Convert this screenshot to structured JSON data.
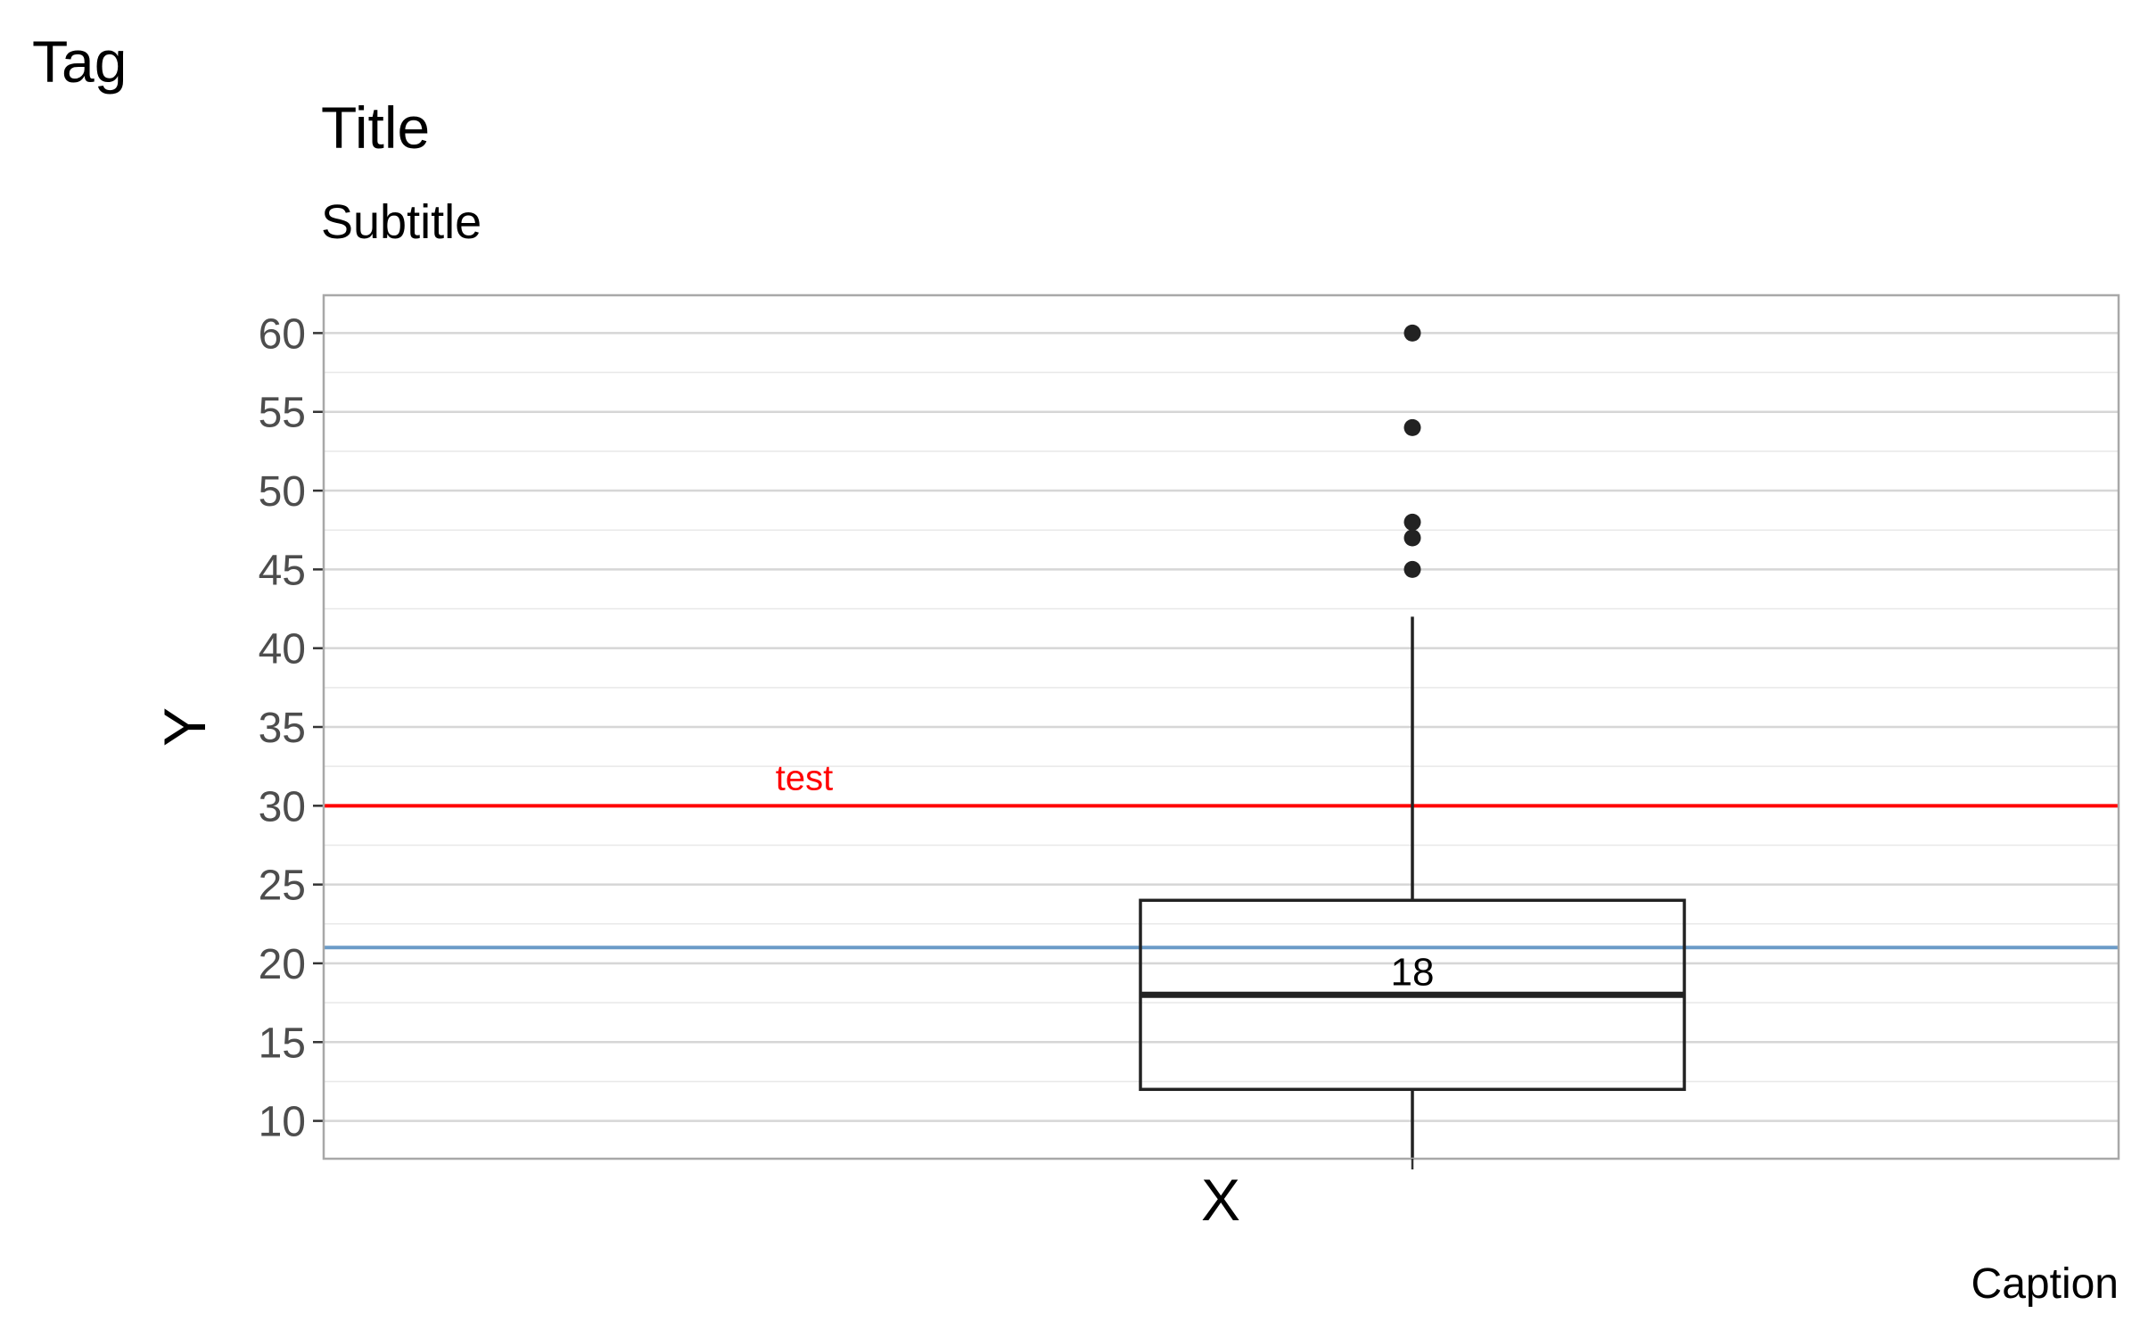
{
  "tag": "Tag",
  "title": "Title",
  "subtitle": "Subtitle",
  "caption": "Caption",
  "chart_data": {
    "type": "boxplot",
    "xlabel": "X",
    "ylabel": "Y",
    "ylim": [
      7.6,
      62.4
    ],
    "y_ticks": [
      10,
      15,
      20,
      25,
      30,
      35,
      40,
      45,
      50,
      55,
      60
    ],
    "y_minor_ticks": [
      12.5,
      17.5,
      22.5,
      27.5,
      32.5,
      37.5,
      42.5,
      47.5,
      52.5,
      57.5
    ],
    "grid": true,
    "box": {
      "lower_whisker": 7.6,
      "q1": 12,
      "median": 18,
      "q3": 24,
      "upper_whisker": 42,
      "outliers": [
        45,
        47,
        48,
        54,
        60
      ]
    },
    "median_label": "18",
    "reference_lines": [
      {
        "y": 30,
        "color": "#ff0000",
        "label": "test"
      },
      {
        "y": 21,
        "color": "#6b9bc8",
        "label": ""
      }
    ],
    "colors": {
      "box_stroke": "#222222",
      "grid": "#d6d6d6",
      "panel_border": "#a8a8a8",
      "tick_text": "#4d4d4d"
    }
  }
}
